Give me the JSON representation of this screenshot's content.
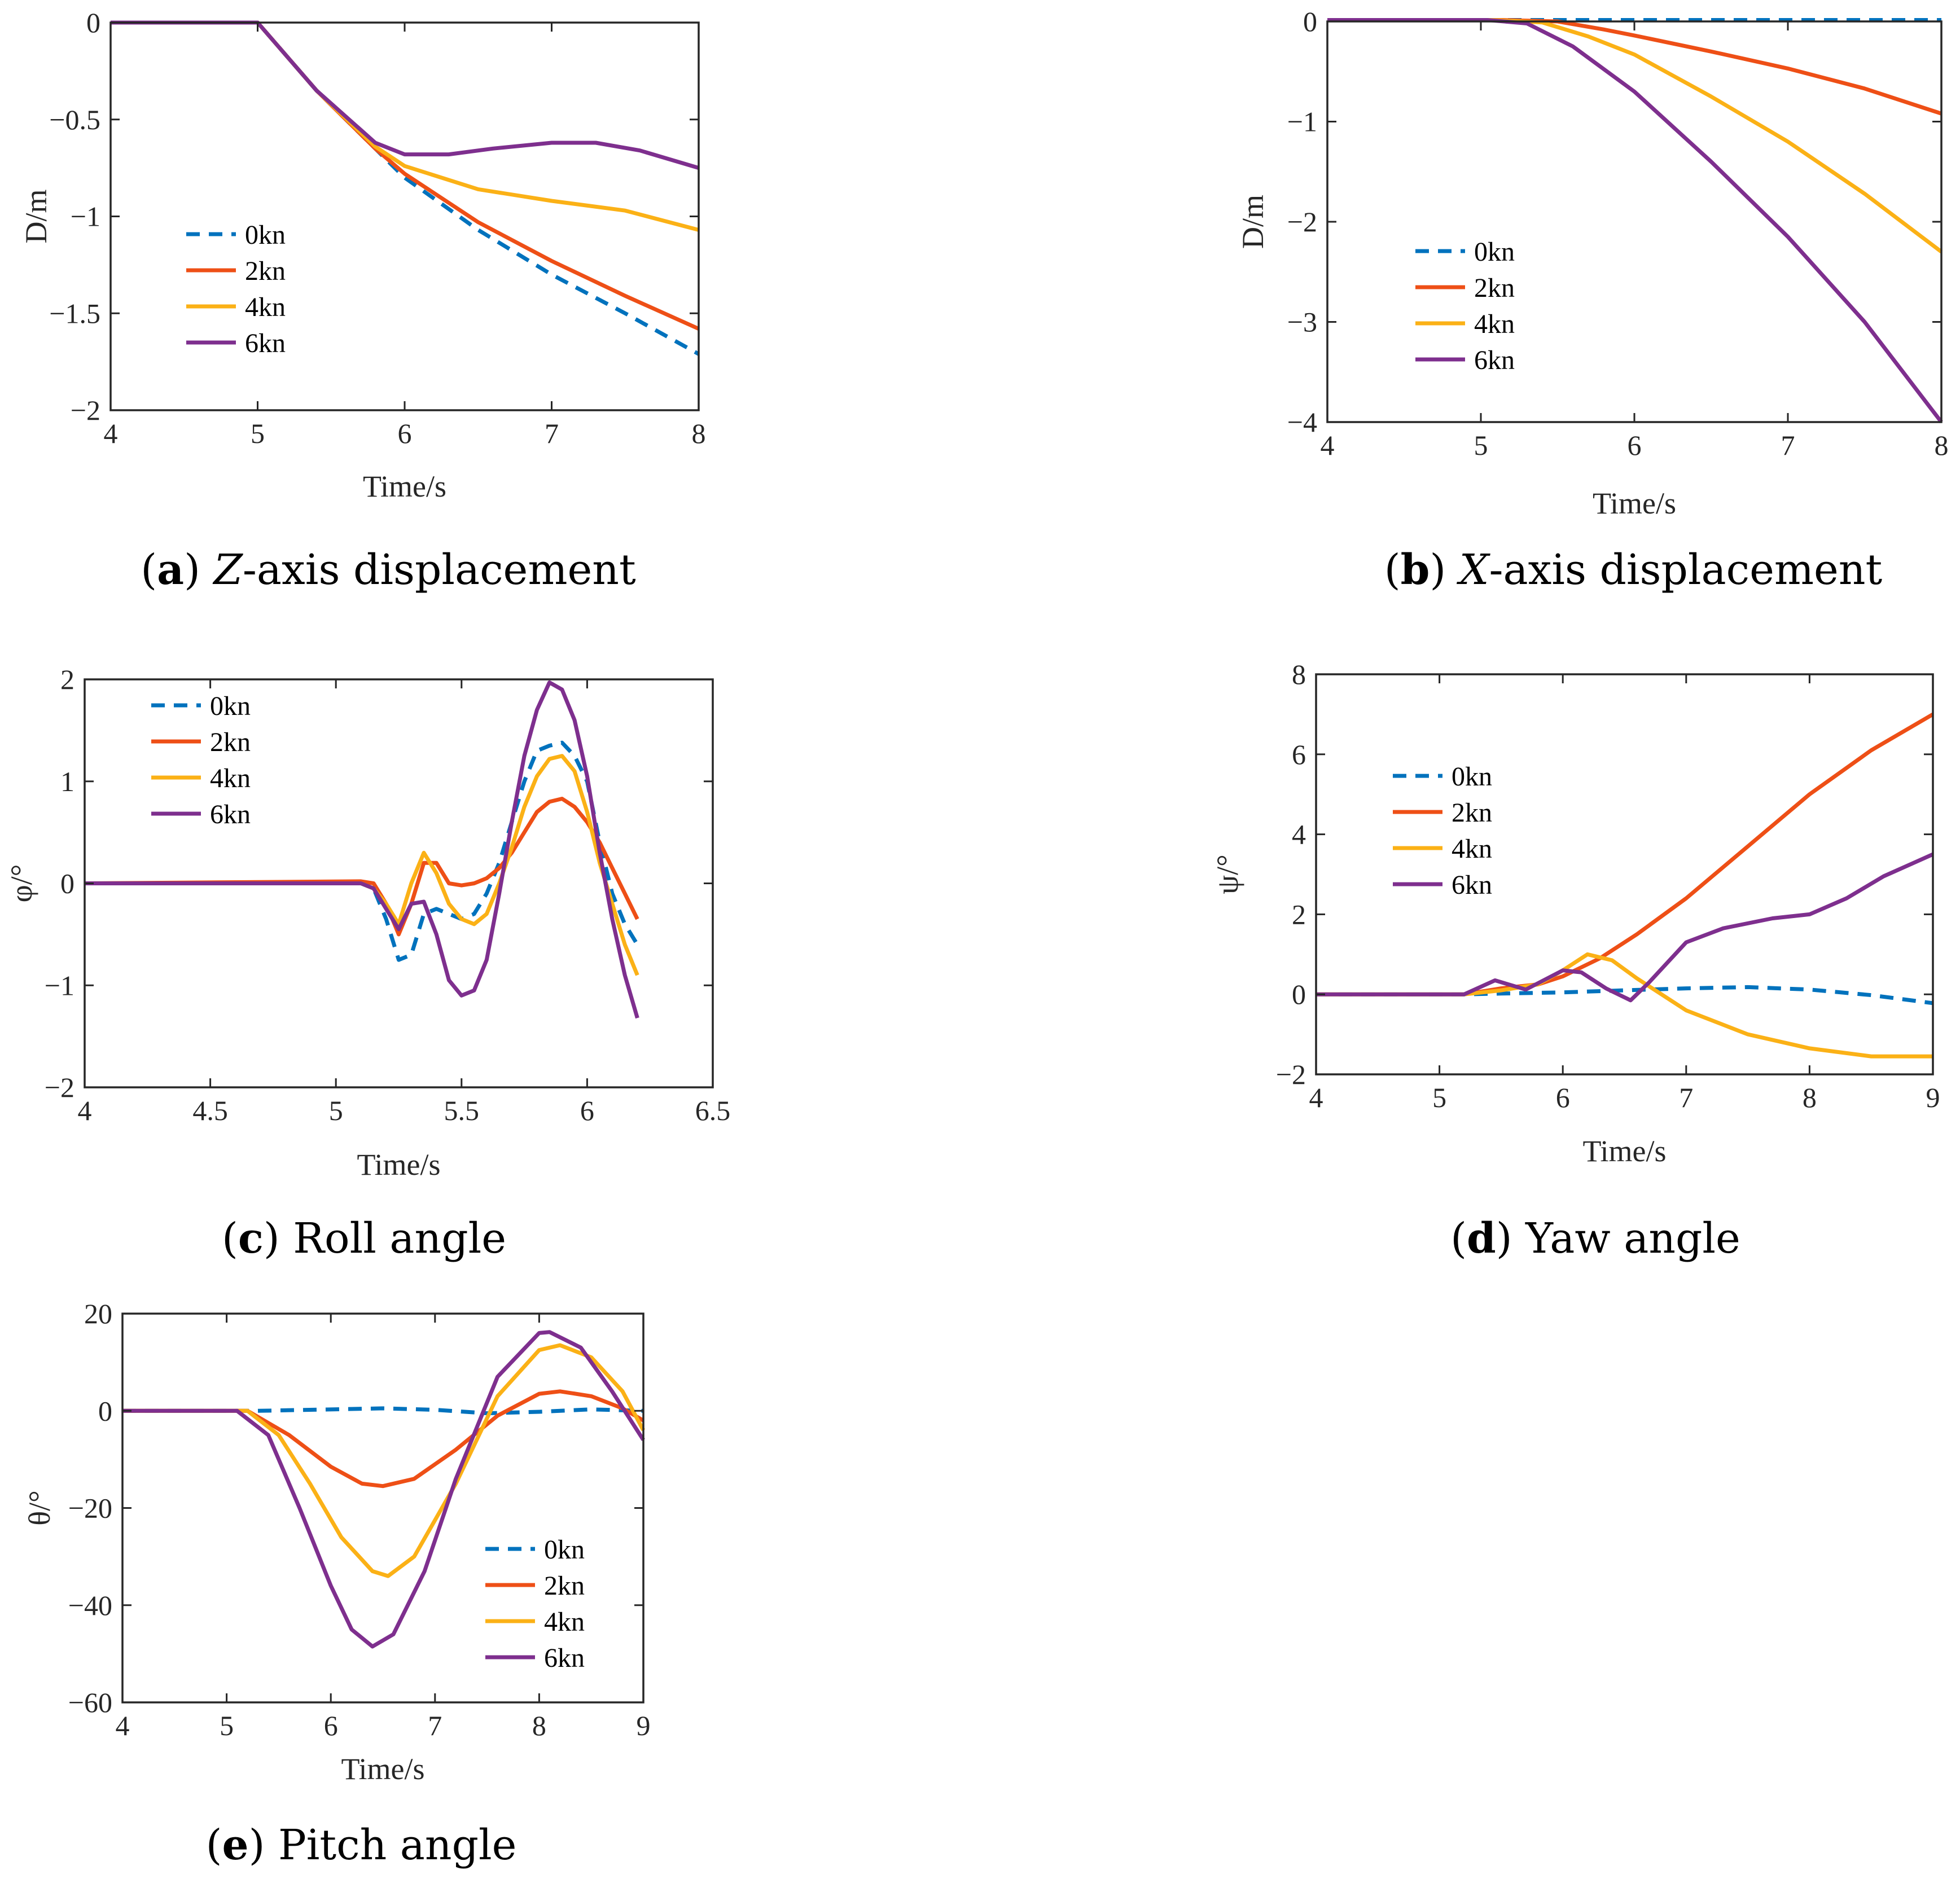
{
  "colors": {
    "kn0": "#0072BD",
    "kn2": "#EE4F16",
    "kn4": "#FBB116",
    "kn6": "#7E2F8E",
    "axis": "#262626"
  },
  "chart_data": [
    {
      "id": "a",
      "type": "line",
      "caption_letter": "a",
      "caption_italic": "Z",
      "caption_rest": "-axis displacement",
      "xlabel": "Time/s",
      "ylabel": "D/m",
      "xlim": [
        4,
        8
      ],
      "ylim": [
        -2,
        0
      ],
      "xticks": [
        4,
        5,
        6,
        7,
        8
      ],
      "yticks": [
        0,
        -0.5,
        -1,
        -1.5,
        -2
      ],
      "xtick_labels": [
        "4",
        "5",
        "6",
        "7",
        "8"
      ],
      "ytick_labels": [
        "0",
        "−0.5",
        "−1",
        "−1.5",
        "−2"
      ],
      "legend": [
        "0kn",
        "2kn",
        "4kn",
        "6kn"
      ],
      "series": [
        {
          "name": "0kn",
          "style": "dashed",
          "x": [
            4,
            5,
            5.4,
            5.8,
            6.0,
            6.5,
            7.0,
            7.5,
            8.0
          ],
          "y": [
            0,
            0,
            -0.35,
            -0.65,
            -0.8,
            -1.07,
            -1.3,
            -1.5,
            -1.71
          ]
        },
        {
          "name": "2kn",
          "style": "solid",
          "x": [
            4,
            5,
            5.4,
            5.8,
            6.0,
            6.5,
            7.0,
            7.5,
            8.0
          ],
          "y": [
            0,
            0,
            -0.35,
            -0.65,
            -0.78,
            -1.03,
            -1.23,
            -1.41,
            -1.58
          ]
        },
        {
          "name": "4kn",
          "style": "solid",
          "x": [
            4,
            5,
            5.4,
            5.8,
            6.0,
            6.5,
            7.0,
            7.5,
            8.0
          ],
          "y": [
            0,
            0,
            -0.35,
            -0.64,
            -0.74,
            -0.86,
            -0.92,
            -0.97,
            -1.07
          ]
        },
        {
          "name": "6kn",
          "style": "solid",
          "x": [
            4,
            5,
            5.4,
            5.8,
            6.0,
            6.3,
            6.6,
            7.0,
            7.3,
            7.6,
            8.0
          ],
          "y": [
            0,
            0,
            -0.35,
            -0.62,
            -0.68,
            -0.68,
            -0.65,
            -0.62,
            -0.62,
            -0.66,
            -0.75
          ]
        }
      ]
    },
    {
      "id": "b",
      "type": "line",
      "caption_letter": "b",
      "caption_italic": "X",
      "caption_rest": "-axis displacement",
      "xlabel": "Time/s",
      "ylabel": "D/m",
      "xlim": [
        4,
        8
      ],
      "ylim": [
        -4,
        0
      ],
      "xticks": [
        4,
        5,
        6,
        7,
        8
      ],
      "yticks": [
        0,
        -1,
        -2,
        -3,
        -4
      ],
      "xtick_labels": [
        "4",
        "5",
        "6",
        "7",
        "8"
      ],
      "ytick_labels": [
        "0",
        "−1",
        "−2",
        "−3",
        "−4"
      ],
      "legend": [
        "0kn",
        "2kn",
        "4kn",
        "6kn"
      ],
      "series": [
        {
          "name": "0kn",
          "style": "dashed",
          "x": [
            4,
            5,
            6,
            7,
            8
          ],
          "y": [
            0.02,
            0.02,
            0.02,
            0.02,
            0.02
          ]
        },
        {
          "name": "2kn",
          "style": "solid",
          "x": [
            4,
            5,
            5.5,
            5.8,
            6.0,
            6.5,
            7.0,
            7.5,
            8.0
          ],
          "y": [
            0.02,
            0.02,
            0.0,
            -0.08,
            -0.14,
            -0.3,
            -0.47,
            -0.67,
            -0.92
          ]
        },
        {
          "name": "4kn",
          "style": "solid",
          "x": [
            4,
            5,
            5.4,
            5.7,
            6.0,
            6.5,
            7.0,
            7.5,
            8.0
          ],
          "y": [
            0.02,
            0.02,
            -0.01,
            -0.15,
            -0.33,
            -0.75,
            -1.2,
            -1.72,
            -2.3
          ]
        },
        {
          "name": "6kn",
          "style": "solid",
          "x": [
            4,
            5,
            5.3,
            5.6,
            6.0,
            6.5,
            7.0,
            7.5,
            8.0
          ],
          "y": [
            0.02,
            0.02,
            -0.02,
            -0.25,
            -0.7,
            -1.4,
            -2.15,
            -3.0,
            -4.0
          ]
        }
      ]
    },
    {
      "id": "c",
      "type": "line",
      "caption_letter": "c",
      "caption_italic": "",
      "caption_rest": "Roll angle",
      "xlabel": "Time/s",
      "ylabel": "φ/°",
      "xlim": [
        4,
        6.5
      ],
      "ylim": [
        -2,
        2
      ],
      "xticks": [
        4,
        4.5,
        5,
        5.5,
        6,
        6.5
      ],
      "yticks": [
        2,
        1,
        0,
        -1,
        -2
      ],
      "xtick_labels": [
        "4",
        "4.5",
        "5",
        "5.5",
        "6",
        "6.5"
      ],
      "ytick_labels": [
        "2",
        "1",
        "0",
        "−1",
        "−2"
      ],
      "legend": [
        "0kn",
        "2kn",
        "4kn",
        "6kn"
      ],
      "series": [
        {
          "name": "0kn",
          "style": "dashed",
          "x": [
            4,
            5.1,
            5.15,
            5.2,
            5.25,
            5.3,
            5.35,
            5.4,
            5.45,
            5.5,
            5.55,
            5.6,
            5.65,
            5.7,
            5.75,
            5.8,
            5.85,
            5.9,
            5.95,
            6.0,
            6.05,
            6.1,
            6.15,
            6.2
          ],
          "y": [
            0,
            0,
            -0.05,
            -0.35,
            -0.75,
            -0.7,
            -0.3,
            -0.25,
            -0.3,
            -0.35,
            -0.3,
            -0.1,
            0.2,
            0.6,
            1.0,
            1.3,
            1.35,
            1.38,
            1.25,
            1.0,
            0.4,
            -0.1,
            -0.4,
            -0.6
          ]
        },
        {
          "name": "2kn",
          "style": "solid",
          "x": [
            4,
            5.1,
            5.15,
            5.2,
            5.25,
            5.3,
            5.35,
            5.4,
            5.45,
            5.5,
            5.55,
            5.6,
            5.65,
            5.7,
            5.75,
            5.8,
            5.85,
            5.9,
            5.95,
            6.0,
            6.05,
            6.1,
            6.15,
            6.2
          ],
          "y": [
            0,
            0.02,
            0.0,
            -0.2,
            -0.5,
            -0.2,
            0.2,
            0.2,
            0.0,
            -0.02,
            0.0,
            0.05,
            0.15,
            0.3,
            0.5,
            0.7,
            0.8,
            0.83,
            0.75,
            0.6,
            0.4,
            0.15,
            -0.1,
            -0.35
          ]
        },
        {
          "name": "4kn",
          "style": "solid",
          "x": [
            4,
            5.1,
            5.15,
            5.2,
            5.25,
            5.3,
            5.35,
            5.4,
            5.45,
            5.5,
            5.55,
            5.6,
            5.65,
            5.7,
            5.75,
            5.8,
            5.85,
            5.9,
            5.95,
            6.0,
            6.05,
            6.1,
            6.15,
            6.2
          ],
          "y": [
            0,
            0,
            -0.05,
            -0.2,
            -0.4,
            0.0,
            0.3,
            0.1,
            -0.2,
            -0.35,
            -0.4,
            -0.3,
            0.0,
            0.35,
            0.75,
            1.05,
            1.22,
            1.25,
            1.1,
            0.7,
            0.2,
            -0.2,
            -0.6,
            -0.9
          ]
        },
        {
          "name": "6kn",
          "style": "solid",
          "x": [
            4,
            5.1,
            5.15,
            5.2,
            5.25,
            5.3,
            5.35,
            5.4,
            5.45,
            5.5,
            5.55,
            5.6,
            5.65,
            5.7,
            5.75,
            5.8,
            5.85,
            5.9,
            5.95,
            6.0,
            6.05,
            6.1,
            6.15,
            6.2
          ],
          "y": [
            0,
            0,
            -0.05,
            -0.25,
            -0.45,
            -0.2,
            -0.18,
            -0.5,
            -0.95,
            -1.1,
            -1.05,
            -0.75,
            -0.1,
            0.6,
            1.25,
            1.7,
            1.97,
            1.9,
            1.6,
            1.05,
            0.3,
            -0.35,
            -0.9,
            -1.32
          ]
        }
      ]
    },
    {
      "id": "d",
      "type": "line",
      "caption_letter": "d",
      "caption_italic": "",
      "caption_rest": "Yaw angle",
      "xlabel": "Time/s",
      "ylabel": "ψ/°",
      "xlim": [
        4,
        9
      ],
      "ylim": [
        -2,
        8
      ],
      "xticks": [
        4,
        5,
        6,
        7,
        8,
        9
      ],
      "yticks": [
        8,
        6,
        4,
        2,
        0,
        -2
      ],
      "xtick_labels": [
        "4",
        "5",
        "6",
        "7",
        "8",
        "9"
      ],
      "ytick_labels": [
        "8",
        "6",
        "4",
        "2",
        "0",
        "−2"
      ],
      "legend": [
        "0kn",
        "2kn",
        "4kn",
        "6kn"
      ],
      "series": [
        {
          "name": "0kn",
          "style": "dashed",
          "x": [
            4,
            5.2,
            5.5,
            6.0,
            6.5,
            7.0,
            7.5,
            8.0,
            8.5,
            9.0
          ],
          "y": [
            0,
            0,
            0.02,
            0.05,
            0.1,
            0.15,
            0.18,
            0.12,
            -0.02,
            -0.22
          ]
        },
        {
          "name": "2kn",
          "style": "solid",
          "x": [
            4,
            5.2,
            5.5,
            5.8,
            6.0,
            6.3,
            6.6,
            7.0,
            7.5,
            8.0,
            8.5,
            9.0
          ],
          "y": [
            0,
            0,
            0.15,
            0.25,
            0.45,
            0.9,
            1.5,
            2.4,
            3.7,
            5.0,
            6.1,
            7.0
          ]
        },
        {
          "name": "4kn",
          "style": "solid",
          "x": [
            4,
            5.2,
            5.5,
            5.8,
            6.0,
            6.2,
            6.4,
            6.6,
            7.0,
            7.5,
            8.0,
            8.5,
            9.0
          ],
          "y": [
            0,
            0,
            0.1,
            0.25,
            0.6,
            1.0,
            0.85,
            0.4,
            -0.4,
            -1.0,
            -1.35,
            -1.55,
            -1.55
          ]
        },
        {
          "name": "6kn",
          "style": "solid",
          "x": [
            4,
            5.2,
            5.45,
            5.7,
            6.0,
            6.15,
            6.35,
            6.55,
            6.7,
            7.0,
            7.3,
            7.7,
            8.0,
            8.3,
            8.6,
            9.0
          ],
          "y": [
            0,
            0,
            0.35,
            0.12,
            0.6,
            0.55,
            0.15,
            -0.15,
            0.3,
            1.3,
            1.65,
            1.9,
            2.0,
            2.4,
            2.95,
            3.5
          ]
        }
      ]
    },
    {
      "id": "e",
      "type": "line",
      "caption_letter": "e",
      "caption_italic": "",
      "caption_rest": "Pitch angle",
      "xlabel": "Time/s",
      "ylabel": "θ/°",
      "xlim": [
        4,
        9
      ],
      "ylim": [
        -60,
        20
      ],
      "xticks": [
        4,
        5,
        6,
        7,
        8,
        9
      ],
      "yticks": [
        20,
        0,
        -20,
        -40,
        -60
      ],
      "xtick_labels": [
        "4",
        "5",
        "6",
        "7",
        "8",
        "9"
      ],
      "ytick_labels": [
        "20",
        "0",
        "−20",
        "−40",
        "−60"
      ],
      "legend": [
        "0kn",
        "2kn",
        "4kn",
        "6kn"
      ],
      "series": [
        {
          "name": "0kn",
          "style": "dashed",
          "x": [
            4,
            5.3,
            5.8,
            6.5,
            7.0,
            7.5,
            8.0,
            8.5,
            9.0
          ],
          "y": [
            0,
            0,
            0.2,
            0.5,
            0.2,
            -0.5,
            -0.2,
            0.3,
            0
          ]
        },
        {
          "name": "2kn",
          "style": "solid",
          "x": [
            4,
            5.2,
            5.6,
            6.0,
            6.3,
            6.5,
            6.8,
            7.2,
            7.6,
            8.0,
            8.2,
            8.5,
            8.8,
            9.0
          ],
          "y": [
            0,
            0,
            -5,
            -11.5,
            -15,
            -15.5,
            -14,
            -8,
            -1,
            3.5,
            4,
            3,
            0.5,
            -2
          ]
        },
        {
          "name": "4kn",
          "style": "solid",
          "x": [
            4,
            5.2,
            5.5,
            5.8,
            6.1,
            6.4,
            6.55,
            6.8,
            7.2,
            7.6,
            8.0,
            8.2,
            8.5,
            8.8,
            9.0
          ],
          "y": [
            0,
            0,
            -5,
            -15,
            -26,
            -33,
            -34,
            -30,
            -15,
            3,
            12.5,
            13.5,
            11,
            4,
            -4
          ]
        },
        {
          "name": "6kn",
          "style": "solid",
          "x": [
            4,
            5.1,
            5.4,
            5.7,
            6.0,
            6.2,
            6.4,
            6.6,
            6.9,
            7.2,
            7.6,
            8.0,
            8.1,
            8.4,
            8.7,
            9.0
          ],
          "y": [
            0,
            0,
            -5,
            -20,
            -36,
            -45,
            -48.5,
            -46,
            -33,
            -14,
            7,
            16,
            16.2,
            13,
            4,
            -6
          ]
        }
      ]
    }
  ]
}
